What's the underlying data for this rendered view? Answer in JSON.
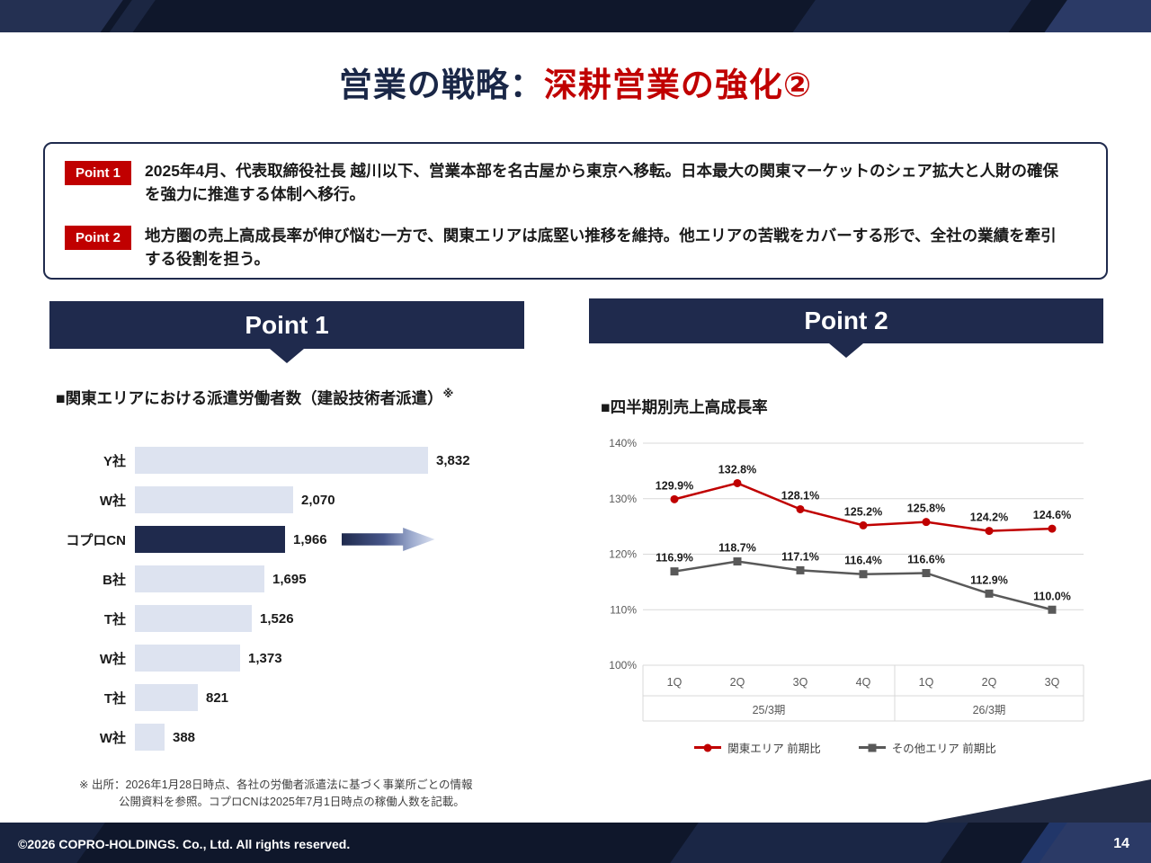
{
  "slide": {
    "title_main": "営業の戦略：",
    "title_accent": "深耕営業の強化②",
    "footer_copyright": "©2026 COPRO-HOLDINGS. Co., Ltd. All rights reserved.",
    "page_number": "14"
  },
  "colors": {
    "navy": "#1f2a4d",
    "accent_red": "#c00000",
    "light_bar": "#dde3f0",
    "gray_series": "#595959"
  },
  "points_box": {
    "items": [
      {
        "badge": "Point 1",
        "text": "2025年4月、代表取締役社長 越川以下、営業本部を名古屋から東京へ移転。日本最大の関東マーケットのシェア拡大と人財の確保を強力に推進する体制へ移行。"
      },
      {
        "badge": "Point 2",
        "text": "地方圏の売上高成長率が伸び悩む一方で、関東エリアは底堅い推移を維持。他エリアの苦戦をカバーする形で、全社の業績を牽引する役割を担う。"
      }
    ]
  },
  "left_panel": {
    "header": "Point 1",
    "chart_title": "■関東エリアにおける派遣労働者数（建設技術者派遣）",
    "title_note": "※",
    "footnote_lines": [
      "※ 出所：2026年1月28日時点、各社の労働者派遣法に基づく事業所ごとの情報",
      "公開資料を参照。コプロCNは2025年7月1日時点の稼働人数を記載。"
    ]
  },
  "right_panel": {
    "header": "Point 2",
    "chart_title": "■四半期別売上高成長率"
  },
  "chart_data": [
    {
      "type": "bar",
      "orientation": "horizontal",
      "title": "関東エリアにおける派遣労働者数（建設技術者派遣）",
      "categories": [
        "Y社",
        "W社",
        "コプロCN",
        "B社",
        "T社",
        "W社",
        "T社",
        "W社"
      ],
      "values": [
        3832,
        2070,
        1966,
        1695,
        1526,
        1373,
        821,
        388
      ],
      "value_labels": [
        "3,832",
        "2,070",
        "1,966",
        "1,695",
        "1,526",
        "1,373",
        "821",
        "388"
      ],
      "highlight_index": 2,
      "highlight_category": "コプロCN",
      "xlim": [
        0,
        4200
      ],
      "bar_color": "#dde3f0",
      "highlight_color": "#1f2a4d"
    },
    {
      "type": "line",
      "title": "四半期別売上高成長率",
      "x": [
        "1Q",
        "2Q",
        "3Q",
        "4Q",
        "1Q",
        "2Q",
        "3Q"
      ],
      "x_groups": [
        {
          "label": "25/3期",
          "span": 4
        },
        {
          "label": "26/3期",
          "span": 3
        }
      ],
      "ylim": [
        100,
        140
      ],
      "yticks": [
        "140%",
        "130%",
        "120%",
        "110%",
        "100%"
      ],
      "grid": true,
      "legend_position": "bottom",
      "series": [
        {
          "name": "関東エリア 前期比",
          "color": "#c00000",
          "marker": "circle",
          "values": [
            129.9,
            132.8,
            128.1,
            125.2,
            125.8,
            124.2,
            124.6
          ],
          "labels": [
            "129.9%",
            "132.8%",
            "128.1%",
            "125.2%",
            "125.8%",
            "124.2%",
            "124.6%"
          ]
        },
        {
          "name": "その他エリア 前期比",
          "color": "#595959",
          "marker": "square",
          "values": [
            116.9,
            118.7,
            117.1,
            116.4,
            116.6,
            112.9,
            110.0
          ],
          "labels": [
            "116.9%",
            "118.7%",
            "117.1%",
            "116.4%",
            "116.6%",
            "112.9%",
            "110.0%"
          ]
        }
      ]
    }
  ]
}
